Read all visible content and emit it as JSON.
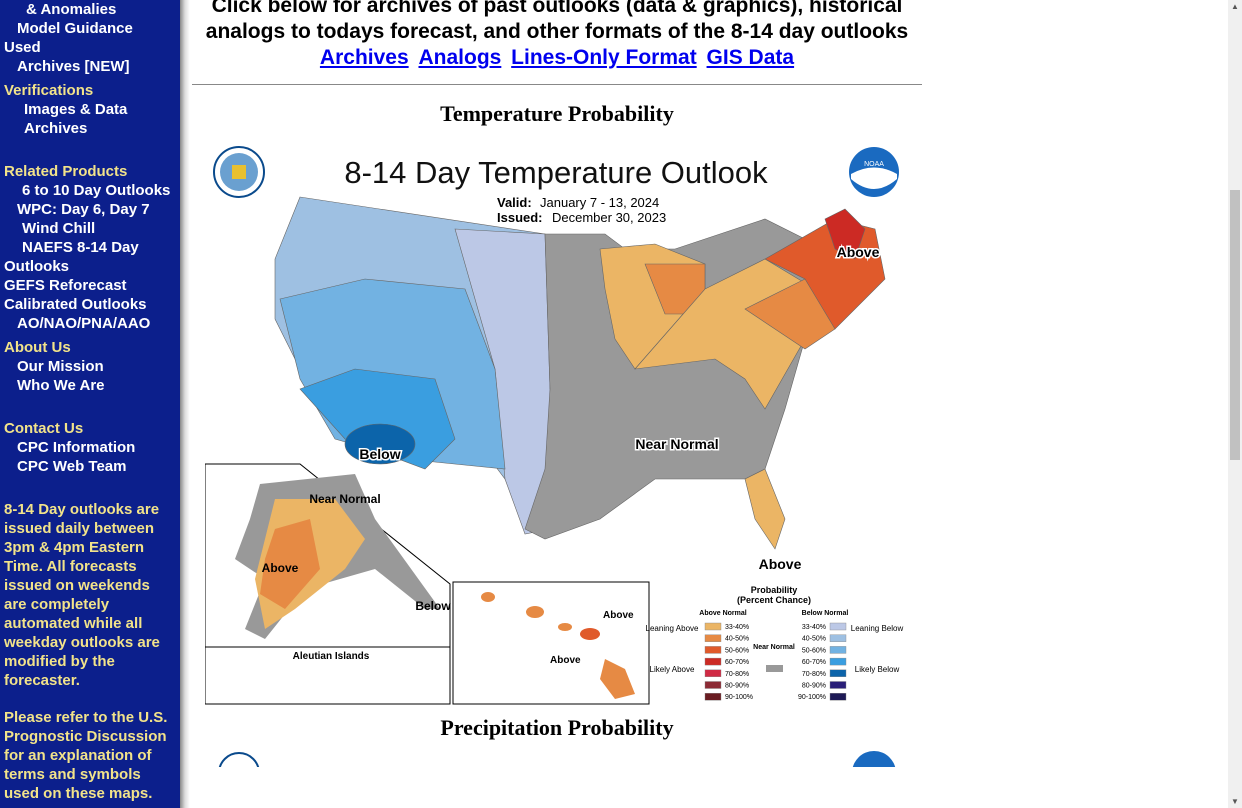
{
  "sidebar": {
    "items": [
      {
        "label": "  & Anomalies",
        "type": "link",
        "indent": 26
      },
      {
        "label": "Model Guidance",
        "type": "link",
        "indent": 17
      },
      {
        "label": "Used",
        "type": "link",
        "indent": 4
      },
      {
        "label": "Archives [NEW]",
        "type": "link",
        "indent": 17
      },
      {
        "label": "Verifications",
        "type": "header",
        "indent": 4
      },
      {
        "label": "Images & Data",
        "type": "link",
        "indent": 24
      },
      {
        "label": "Archives",
        "type": "link",
        "indent": 24
      },
      {
        "label": "",
        "type": "gap"
      },
      {
        "label": "Related Products",
        "type": "header",
        "indent": 4
      },
      {
        "label": "6 to 10 Day Outlooks",
        "type": "link",
        "indent": 22
      },
      {
        "label": "WPC: Day 6, Day 7",
        "type": "link",
        "indent": 17
      },
      {
        "label": "Wind Chill",
        "type": "link",
        "indent": 22
      },
      {
        "label": "NAEFS 8-14 Day",
        "type": "link",
        "indent": 22
      },
      {
        "label": "Outlooks",
        "type": "link",
        "indent": 4
      },
      {
        "label": "GEFS Reforecast",
        "type": "link",
        "indent": 4
      },
      {
        "label": "Calibrated Outlooks",
        "type": "link",
        "indent": 4
      },
      {
        "label": "AO/NAO/PNA/AAO",
        "type": "link",
        "indent": 17
      },
      {
        "label": "About Us",
        "type": "header",
        "indent": 4
      },
      {
        "label": "Our Mission",
        "type": "link",
        "indent": 17
      },
      {
        "label": "Who We Are",
        "type": "link",
        "indent": 17
      },
      {
        "label": "",
        "type": "gap"
      },
      {
        "label": "Contact Us",
        "type": "header",
        "indent": 4
      },
      {
        "label": "CPC Information",
        "type": "link",
        "indent": 17
      },
      {
        "label": "CPC Web Team",
        "type": "link",
        "indent": 17
      }
    ],
    "note1": "8-14 Day outlooks are issued daily between 3pm & 4pm Eastern Time. All forecasts issued on weekends are completely automated while all weekday outlooks are modified by the forecaster.",
    "note2": "Please refer to the U.S. Prognostic Discussion for an explanation of terms and symbols used on these maps."
  },
  "main": {
    "intro": "Click below for archives of past outlooks (data & graphics), historical analogs to todays forecast, and other formats of the 8-14 day outlooks",
    "links": [
      "Archives",
      "Analogs",
      "Lines-Only Format",
      "GIS Data"
    ],
    "section1": "Temperature Probability",
    "section2": "Precipitation Probability"
  },
  "map": {
    "title": "8-14 Day Temperature Outlook",
    "valid_label": "Valid:",
    "valid": "January 7 - 13, 2024",
    "issued_label": "Issued:",
    "issued": "December 30, 2023",
    "noaa": "NOAA",
    "labels": {
      "above_ne": "Above",
      "below_sw": "Below",
      "near_normal": "Near Normal",
      "above_fl": "Above",
      "ak_near": "Near Normal",
      "ak_above": "Above",
      "ak_below": "Below",
      "aleutian": "Aleutian Islands",
      "hi_above1": "Above",
      "hi_above2": "Above"
    },
    "legend": {
      "title": "Probability",
      "subtitle": "(Percent Chance)",
      "above_header": "Above Normal",
      "below_header": "Below Normal",
      "near_normal": "Near Normal",
      "near_color": "#999999",
      "leaning_above": "Leaning Above",
      "likely_above": "Likely Above",
      "leaning_below": "Leaning Below",
      "likely_below": "Likely Below",
      "above": [
        {
          "range": "33-40%",
          "color": "#ebb565"
        },
        {
          "range": "40-50%",
          "color": "#e68a44"
        },
        {
          "range": "50-60%",
          "color": "#e05a2b"
        },
        {
          "range": "60-70%",
          "color": "#cc2a24"
        },
        {
          "range": "70-80%",
          "color": "#d02a44"
        },
        {
          "range": "80-90%",
          "color": "#8c2a34"
        },
        {
          "range": "90-100%",
          "color": "#6a1c22"
        }
      ],
      "below": [
        {
          "range": "33-40%",
          "color": "#bcc8e6"
        },
        {
          "range": "40-50%",
          "color": "#9ec0e2"
        },
        {
          "range": "50-60%",
          "color": "#72b2e2"
        },
        {
          "range": "60-70%",
          "color": "#3a9ee0"
        },
        {
          "range": "70-80%",
          "color": "#0c64aa"
        },
        {
          "range": "80-90%",
          "color": "#2a1f78"
        },
        {
          "range": "90-100%",
          "color": "#1e1a56"
        }
      ]
    }
  }
}
